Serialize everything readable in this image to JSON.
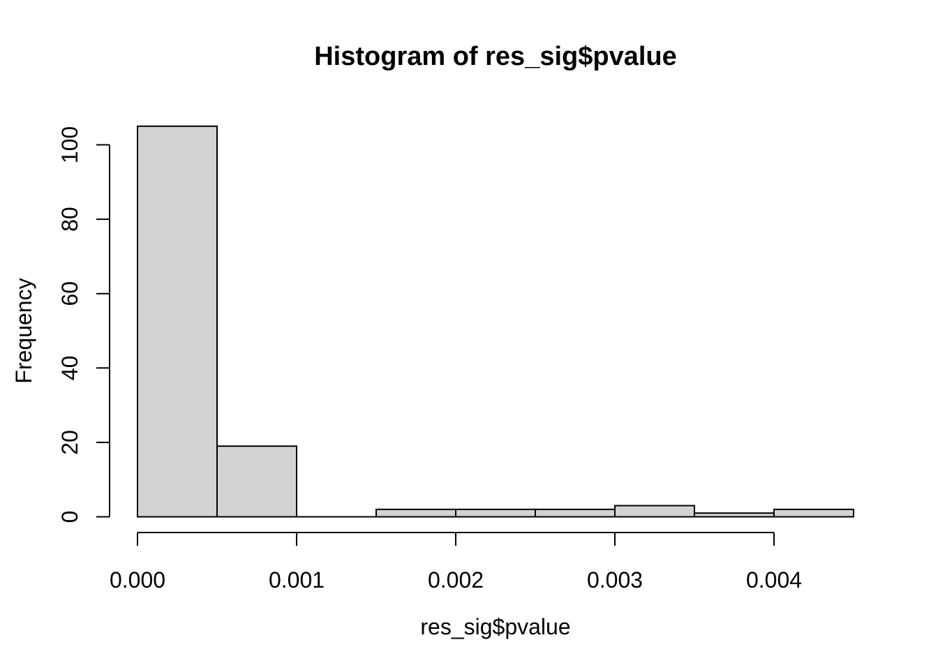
{
  "chart_data": {
    "type": "bar",
    "subtype": "histogram",
    "title": "Histogram of res_sig$pvalue",
    "xlabel": "res_sig$pvalue",
    "ylabel": "Frequency",
    "bin_breaks": [
      0.0,
      0.0005,
      0.001,
      0.0015,
      0.002,
      0.0025,
      0.003,
      0.0035,
      0.004,
      0.0045
    ],
    "counts": [
      105,
      19,
      0,
      2,
      2,
      2,
      3,
      1,
      2
    ],
    "xlim": [
      0.0,
      0.0045
    ],
    "ylim": [
      0,
      105
    ],
    "x_ticks": {
      "values": [
        0.0,
        0.001,
        0.002,
        0.003,
        0.004
      ],
      "labels": [
        "0.000",
        "0.001",
        "0.002",
        "0.003",
        "0.004"
      ]
    },
    "y_ticks": {
      "values": [
        0,
        20,
        40,
        60,
        80,
        100
      ],
      "labels": [
        "0",
        "20",
        "40",
        "60",
        "80",
        "100"
      ]
    },
    "grid": false,
    "legend": "none",
    "colors": {
      "bar_fill": "#D3D3D3",
      "bar_border": "#000000",
      "axis": "#000000",
      "text": "#000000",
      "background": "#FFFFFF"
    }
  }
}
